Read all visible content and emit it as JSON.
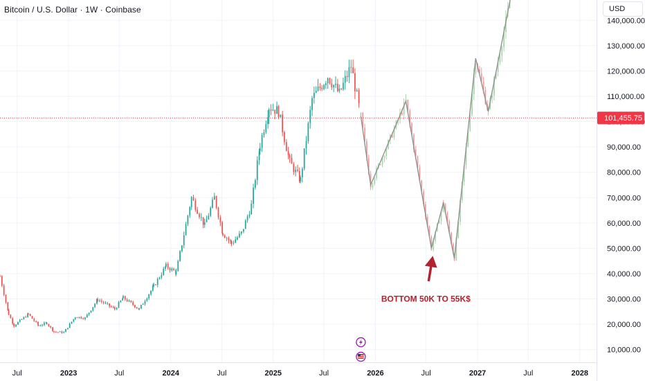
{
  "header": {
    "symbol_title": "Bitcoin / U.S. Dollar · 1W · Coinbase",
    "currency": "USD"
  },
  "colors": {
    "up": "#26a69a",
    "down": "#ef5350",
    "projection_up": "#a5d6a7",
    "projection_down": "#ef9a9a",
    "path_line": "#8c8c8c",
    "price_line": "#f23645",
    "arrow": "#b2222f",
    "annotation": "#b2222f",
    "grid": "#f0f3fa",
    "axis_text": "#131722",
    "event_icon": "#9c27b0"
  },
  "chart_data": {
    "type": "candlestick",
    "title": "",
    "ylabel": "",
    "y_ticks": [
      "10,000.00",
      "20,000.00",
      "30,000.00",
      "40,000.00",
      "50,000.00",
      "60,000.00",
      "70,000.00",
      "80,000.00",
      "90,000.00",
      "100,000.00",
      "110,000.00",
      "120,000.00",
      "130,000.00",
      "140,000.00"
    ],
    "x_ticks": [
      "Jul",
      "2023",
      "Jul",
      "2024",
      "Jul",
      "2025",
      "Jul",
      "2026",
      "Jul",
      "2027",
      "Jul",
      "2028"
    ],
    "x_ticks_bold": [
      "2023",
      "2024",
      "2025",
      "2026",
      "2027",
      "2028"
    ],
    "x_range": [
      "2022-05-01",
      "2028-03-01"
    ],
    "y_range": [
      5000,
      148000
    ],
    "grid": true,
    "current_price": {
      "value": 101455.75,
      "label": "101,455.75"
    },
    "price_series": [
      {
        "date": "2022-05-01",
        "close": 39000
      },
      {
        "date": "2022-06-01",
        "close": 24000
      },
      {
        "date": "2022-06-20",
        "close": 19500
      },
      {
        "date": "2022-08-10",
        "close": 24000
      },
      {
        "date": "2022-09-15",
        "close": 19500
      },
      {
        "date": "2022-10-15",
        "close": 20500
      },
      {
        "date": "2022-11-10",
        "close": 17000
      },
      {
        "date": "2022-12-15",
        "close": 16800
      },
      {
        "date": "2023-01-25",
        "close": 23000
      },
      {
        "date": "2023-03-01",
        "close": 22500
      },
      {
        "date": "2023-04-15",
        "close": 29800
      },
      {
        "date": "2023-06-15",
        "close": 26000
      },
      {
        "date": "2023-07-15",
        "close": 30500
      },
      {
        "date": "2023-09-10",
        "close": 26000
      },
      {
        "date": "2023-11-01",
        "close": 35000
      },
      {
        "date": "2023-12-15",
        "close": 43000
      },
      {
        "date": "2024-01-20",
        "close": 40500
      },
      {
        "date": "2024-03-15",
        "close": 70000
      },
      {
        "date": "2024-05-01",
        "close": 59000
      },
      {
        "date": "2024-06-05",
        "close": 70000
      },
      {
        "date": "2024-07-05",
        "close": 56000
      },
      {
        "date": "2024-08-05",
        "close": 52000
      },
      {
        "date": "2024-09-10",
        "close": 56000
      },
      {
        "date": "2024-10-15",
        "close": 67000
      },
      {
        "date": "2024-11-15",
        "close": 91000
      },
      {
        "date": "2024-12-17",
        "close": 106000
      },
      {
        "date": "2025-01-20",
        "close": 104000
      },
      {
        "date": "2025-03-01",
        "close": 84000
      },
      {
        "date": "2025-04-08",
        "close": 77000
      },
      {
        "date": "2025-05-20",
        "close": 109000
      },
      {
        "date": "2025-07-15",
        "close": 118000
      },
      {
        "date": "2025-08-25",
        "close": 111000
      },
      {
        "date": "2025-10-06",
        "close": 122000
      },
      {
        "date": "2025-11-10",
        "close": 102000
      }
    ],
    "projection_path": [
      {
        "date": "2025-11-10",
        "value": 102000
      },
      {
        "date": "2025-12-15",
        "value": 75000
      },
      {
        "date": "2026-04-20",
        "value": 108000
      },
      {
        "date": "2026-07-20",
        "value": 50000
      },
      {
        "date": "2026-09-01",
        "value": 68000
      },
      {
        "date": "2026-10-10",
        "value": 46000
      },
      {
        "date": "2026-12-25",
        "value": 125000
      },
      {
        "date": "2027-02-08",
        "value": 104000
      },
      {
        "date": "2027-05-01",
        "value": 150000
      }
    ],
    "annotations": [
      {
        "text": "BOTTOM 50K TO 55K$",
        "date": "2026-07-25",
        "value": 30000,
        "arrow_tip": {
          "date": "2026-07-25",
          "value": 47000
        },
        "arrow_tail": {
          "date": "2026-07-10",
          "value": 37000
        }
      }
    ],
    "events": [
      {
        "type": "lightning",
        "date": "2025-11-10"
      },
      {
        "type": "us-flag",
        "date": "2025-11-10"
      }
    ]
  }
}
